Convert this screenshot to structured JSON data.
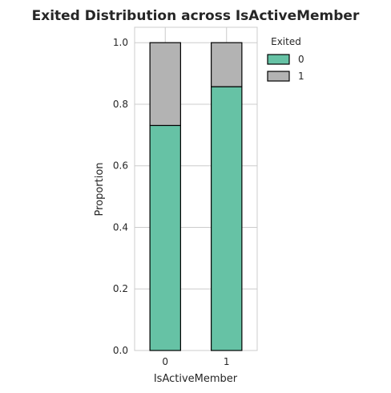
{
  "chart_data": {
    "type": "bar",
    "stacked": true,
    "title": "Exited Distribution across IsActiveMember",
    "xlabel": "IsActiveMember",
    "ylabel": "Proportion",
    "categories": [
      "0",
      "1"
    ],
    "series": [
      {
        "name": "0",
        "values": [
          0.731,
          0.857
        ],
        "color": "#66c2a5"
      },
      {
        "name": "1",
        "values": [
          0.269,
          0.143
        ],
        "color": "#b3b3b3"
      }
    ],
    "ylim": [
      0,
      1.05
    ],
    "yticks": [
      "0.0",
      "0.2",
      "0.4",
      "0.6",
      "0.8",
      "1.0"
    ],
    "grid": true,
    "legend": {
      "title": "Exited",
      "placement": "outside-top-right"
    }
  }
}
